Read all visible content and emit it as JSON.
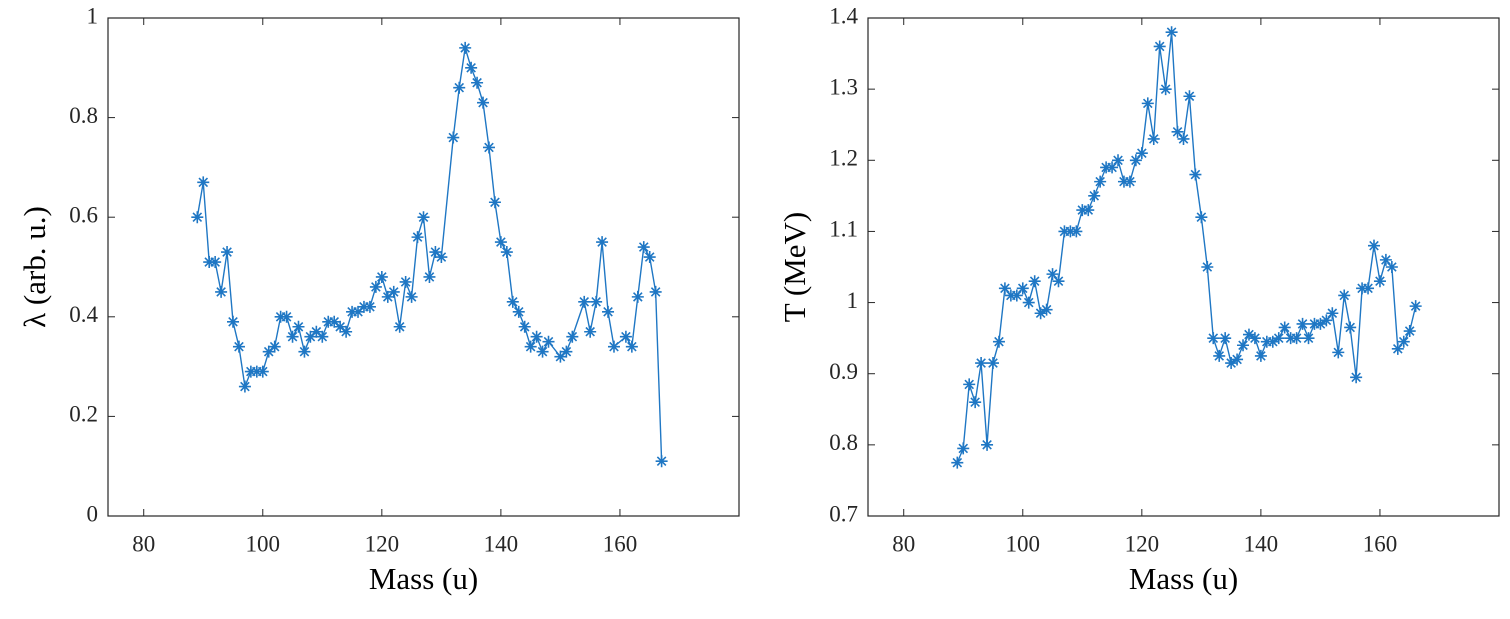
{
  "chart_data": [
    {
      "type": "line",
      "xlabel": "Mass (u)",
      "ylabel": "λ (arb. u.)",
      "xlim": [
        74,
        180
      ],
      "xticks": [
        80,
        100,
        120,
        140,
        160
      ],
      "ylim": [
        0,
        1
      ],
      "yticks": [
        0,
        0.2,
        0.4,
        0.6,
        0.8,
        1
      ],
      "series": [
        {
          "color": "#1f77c4",
          "x": [
            89,
            90,
            91,
            92,
            93,
            94,
            95,
            96,
            97,
            98,
            99,
            100,
            101,
            102,
            103,
            104,
            105,
            106,
            107,
            108,
            109,
            110,
            111,
            112,
            113,
            114,
            115,
            116,
            117,
            118,
            119,
            120,
            121,
            122,
            123,
            124,
            125,
            126,
            127,
            128,
            129,
            130,
            132,
            133,
            134,
            135,
            136,
            137,
            138,
            139,
            140,
            141,
            142,
            143,
            144,
            145,
            146,
            147,
            148,
            150,
            151,
            152,
            154,
            155,
            156,
            157,
            158,
            159,
            161,
            162,
            163,
            164,
            165,
            166,
            167
          ],
          "values": [
            0.6,
            0.67,
            0.51,
            0.51,
            0.45,
            0.53,
            0.39,
            0.34,
            0.26,
            0.29,
            0.29,
            0.29,
            0.33,
            0.34,
            0.4,
            0.4,
            0.36,
            0.38,
            0.33,
            0.36,
            0.37,
            0.36,
            0.39,
            0.39,
            0.38,
            0.37,
            0.41,
            0.41,
            0.42,
            0.42,
            0.46,
            0.48,
            0.44,
            0.45,
            0.38,
            0.47,
            0.44,
            0.56,
            0.6,
            0.48,
            0.53,
            0.52,
            0.76,
            0.86,
            0.94,
            0.9,
            0.87,
            0.83,
            0.74,
            0.63,
            0.55,
            0.53,
            0.43,
            0.41,
            0.38,
            0.34,
            0.36,
            0.33,
            0.35,
            0.32,
            0.33,
            0.36,
            0.43,
            0.37,
            0.43,
            0.55,
            0.41,
            0.34,
            0.36,
            0.34,
            0.44,
            0.54,
            0.52,
            0.45,
            0.11
          ]
        }
      ]
    },
    {
      "type": "line",
      "xlabel": "Mass (u)",
      "ylabel": "T (MeV)",
      "xlim": [
        74,
        180
      ],
      "xticks": [
        80,
        100,
        120,
        140,
        160
      ],
      "ylim": [
        0.7,
        1.4
      ],
      "yticks": [
        0.7,
        0.8,
        0.9,
        1,
        1.1,
        1.2,
        1.3,
        1.4
      ],
      "series": [
        {
          "color": "#1f77c4",
          "x": [
            89,
            90,
            91,
            92,
            93,
            94,
            95,
            96,
            97,
            98,
            99,
            100,
            101,
            102,
            103,
            104,
            105,
            106,
            107,
            108,
            109,
            110,
            111,
            112,
            113,
            114,
            115,
            116,
            117,
            118,
            119,
            120,
            121,
            122,
            123,
            124,
            125,
            126,
            127,
            128,
            129,
            130,
            131,
            132,
            133,
            134,
            135,
            136,
            137,
            138,
            139,
            140,
            141,
            142,
            143,
            144,
            145,
            146,
            147,
            148,
            149,
            150,
            151,
            152,
            153,
            154,
            155,
            156,
            157,
            158,
            159,
            160,
            161,
            162,
            163,
            164,
            165,
            166
          ],
          "values": [
            0.775,
            0.795,
            0.885,
            0.86,
            0.915,
            0.8,
            0.915,
            0.945,
            1.02,
            1.01,
            1.01,
            1.02,
            1.0,
            1.03,
            0.985,
            0.99,
            1.04,
            1.03,
            1.1,
            1.1,
            1.1,
            1.13,
            1.13,
            1.15,
            1.17,
            1.19,
            1.19,
            1.2,
            1.17,
            1.17,
            1.2,
            1.21,
            1.28,
            1.23,
            1.36,
            1.3,
            1.38,
            1.24,
            1.23,
            1.29,
            1.18,
            1.12,
            1.05,
            0.95,
            0.925,
            0.95,
            0.915,
            0.92,
            0.94,
            0.955,
            0.95,
            0.925,
            0.945,
            0.945,
            0.95,
            0.965,
            0.95,
            0.95,
            0.97,
            0.95,
            0.97,
            0.97,
            0.975,
            0.985,
            0.93,
            1.01,
            0.965,
            0.895,
            1.02,
            1.02,
            1.08,
            1.03,
            1.06,
            1.05,
            0.935,
            0.945,
            0.96,
            0.995
          ]
        }
      ]
    }
  ]
}
